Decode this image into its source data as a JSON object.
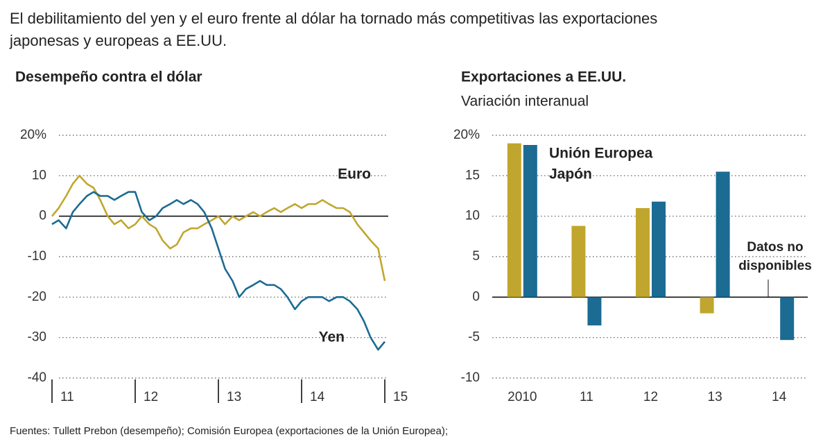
{
  "headline": [
    "El debilitamiento del yen y el euro frente al dólar ha tornado más competitivas las exportaciones",
    "japonesas y europeas a EE.UU."
  ],
  "source": "Fuentes: Tullett Prebon (desempeño); Comisión Europea (exportaciones de la Unión Europea);",
  "chart_data": [
    {
      "type": "line",
      "title": "Desempeño contra el dólar",
      "x": [
        11,
        11.08,
        11.17,
        11.25,
        11.33,
        11.42,
        11.5,
        11.58,
        11.67,
        11.75,
        11.83,
        11.92,
        12,
        12.08,
        12.17,
        12.25,
        12.33,
        12.42,
        12.5,
        12.58,
        12.67,
        12.75,
        12.83,
        12.92,
        13,
        13.08,
        13.17,
        13.25,
        13.33,
        13.42,
        13.5,
        13.58,
        13.67,
        13.75,
        13.83,
        13.92,
        14,
        14.08,
        14.17,
        14.25,
        14.33,
        14.42,
        14.5,
        14.58,
        14.67,
        14.75,
        14.83,
        14.92,
        15
      ],
      "series": [
        {
          "name": "Euro",
          "color": "#c0a62e",
          "values": [
            0,
            2,
            5,
            8,
            10,
            8,
            7,
            4,
            0,
            -2,
            -1,
            -3,
            -2,
            0,
            -2,
            -3,
            -6,
            -8,
            -7,
            -4,
            -3,
            -3,
            -2,
            -1,
            0,
            -2,
            0,
            -1,
            0,
            1,
            0,
            1,
            2,
            1,
            2,
            3,
            2,
            3,
            3,
            4,
            3,
            2,
            2,
            1,
            -2,
            -4,
            -6,
            -8,
            -16
          ]
        },
        {
          "name": "Yen",
          "color": "#1b6b93",
          "values": [
            -2,
            -1,
            -3,
            1,
            3,
            5,
            6,
            5,
            5,
            4,
            5,
            6,
            6,
            1,
            -1,
            0,
            2,
            3,
            4,
            3,
            4,
            3,
            1,
            -3,
            -8,
            -13,
            -16,
            -20,
            -18,
            -17,
            -16,
            -17,
            -17,
            -18,
            -20,
            -23,
            -21,
            -20,
            -20,
            -20,
            -21,
            -20,
            -20,
            -21,
            -23,
            -26,
            -30,
            -33,
            -31
          ]
        }
      ],
      "xlim": [
        11,
        15
      ],
      "xticks": [
        11,
        12,
        13,
        14,
        15
      ],
      "ylim": [
        -40,
        20
      ],
      "yticks": [
        {
          "value": 20,
          "label": "20%"
        },
        10,
        0,
        -10,
        -20,
        -30,
        -40
      ],
      "grid": true
    },
    {
      "type": "bar",
      "title": "Exportaciones a EE.UU.",
      "subtitle": "Variación interanual",
      "categories": [
        "2010",
        "11",
        "12",
        "13",
        "14"
      ],
      "series": [
        {
          "name": "Unión Europea",
          "color": "#c0a62e",
          "values": [
            19,
            8.8,
            11,
            -2,
            null
          ]
        },
        {
          "name": "Japón",
          "color": "#1b6b93",
          "values": [
            18.8,
            -3.5,
            11.8,
            15.5,
            -5.3
          ]
        }
      ],
      "annotation": [
        "Datos no",
        "disponibles"
      ],
      "ylim": [
        -10,
        20
      ],
      "yticks": [
        {
          "value": 20,
          "label": "20%"
        },
        15,
        10,
        5,
        0,
        -5,
        -10
      ],
      "grid": true
    }
  ]
}
